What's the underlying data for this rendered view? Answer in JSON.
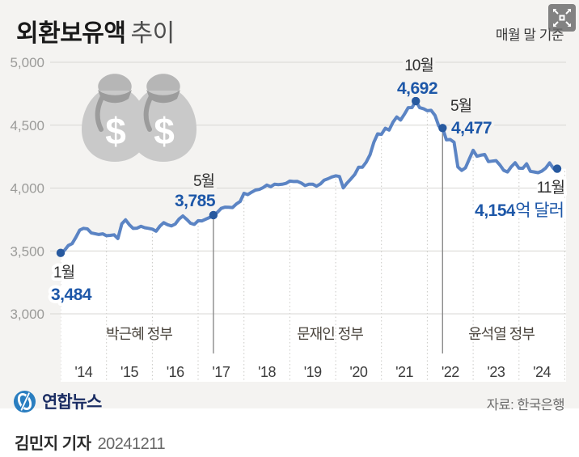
{
  "title": {
    "main": "외환보유액",
    "sub": "추이"
  },
  "note": "매월 말 기준",
  "axes": {
    "y": [
      "5,000",
      "4,500",
      "4,000",
      "3,500",
      "3,000"
    ],
    "x": [
      "'14",
      "'15",
      "'16",
      "'17",
      "'18",
      "'19",
      "'20",
      "'21",
      "'22",
      "'23",
      "'24"
    ]
  },
  "governments": [
    "박근혜 정부",
    "문재인 정부",
    "윤석열 정부"
  ],
  "annotations": [
    {
      "month": "1월",
      "value": "3,484",
      "month_index": 0,
      "vline": false
    },
    {
      "month": "5월",
      "value": "3,785",
      "month_index": 40,
      "vline": true
    },
    {
      "month": "10월",
      "value": "4,692",
      "month_index": 93,
      "vline": false
    },
    {
      "month": "5월",
      "value": "4,477",
      "month_index": 100,
      "vline": true
    },
    {
      "month": "11월",
      "value": "4,154",
      "unit": "억 달러",
      "month_index": 130,
      "vline": false
    }
  ],
  "footer": {
    "agency": "연합뉴스",
    "source": "자료: 한국은행",
    "reporter": "김민지 기자",
    "date": "20241211"
  },
  "colors": {
    "card_bg": "#f4f3f1",
    "line": "#5b84c4",
    "dot": "#27599f",
    "accent_text": "#1d57a8"
  },
  "chart_data": {
    "type": "line",
    "title": "외환보유액 추이",
    "subtitle": "매월 말 기준",
    "unit": "억 달러",
    "x_start": "2014-01",
    "x_end": "2024-11",
    "x_tick_labels": [
      "'14",
      "'15",
      "'16",
      "'17",
      "'18",
      "'19",
      "'20",
      "'21",
      "'22",
      "'23",
      "'24"
    ],
    "ylim": [
      3000,
      5000
    ],
    "y_ticks": [
      5000,
      4500,
      4000,
      3500,
      3000
    ],
    "legend": "none",
    "grid": "horizontal solid + yearly dotted vertical",
    "series": [
      {
        "name": "외환보유액(억 달러)",
        "monthly_values": [
          3484,
          3504,
          3543,
          3558,
          3609,
          3666,
          3680,
          3675,
          3644,
          3637,
          3631,
          3636,
          3621,
          3624,
          3628,
          3599,
          3715,
          3747,
          3708,
          3679,
          3681,
          3696,
          3685,
          3680,
          3673,
          3657,
          3698,
          3725,
          3709,
          3699,
          3714,
          3754,
          3778,
          3751,
          3720,
          3711,
          3740,
          3739,
          3753,
          3766,
          3785,
          3806,
          3838,
          3848,
          3847,
          3845,
          3873,
          3893,
          3958,
          3948,
          3967,
          3984,
          3989,
          4003,
          4024,
          4011,
          4030,
          4027,
          4030,
          4037,
          4055,
          4052,
          4053,
          4040,
          4020,
          4031,
          4031,
          4015,
          4033,
          4063,
          4074,
          4088,
          4097,
          4092,
          4002,
          4040,
          4073,
          4108,
          4165,
          4165,
          4205,
          4265,
          4364,
          4431,
          4427,
          4475,
          4461,
          4523,
          4565,
          4541,
          4587,
          4639,
          4640,
          4692,
          4639,
          4631,
          4615,
          4618,
          4578,
          4493,
          4477,
          4383,
          4386,
          4364,
          4168,
          4140,
          4161,
          4232,
          4300,
          4253,
          4261,
          4267,
          4210,
          4214,
          4218,
          4183,
          4141,
          4128,
          4170,
          4201,
          4158,
          4157,
          4193,
          4133,
          4128,
          4122,
          4135,
          4159,
          4200,
          4157,
          4154
        ]
      }
    ],
    "key_points": [
      {
        "date": "2014-01",
        "label": "1월",
        "value": 3484
      },
      {
        "date": "2017-05",
        "label": "5월",
        "value": 3785
      },
      {
        "date": "2021-10",
        "label": "10월",
        "value": 4692
      },
      {
        "date": "2022-05",
        "label": "5월",
        "value": 4477
      },
      {
        "date": "2024-11",
        "label": "11월",
        "value": 4154
      }
    ],
    "period_bands": [
      "박근혜 정부 (2014–2017.5)",
      "문재인 정부 (2017.5–2022.5)",
      "윤석열 정부 (2022.5–2024.11)"
    ]
  }
}
